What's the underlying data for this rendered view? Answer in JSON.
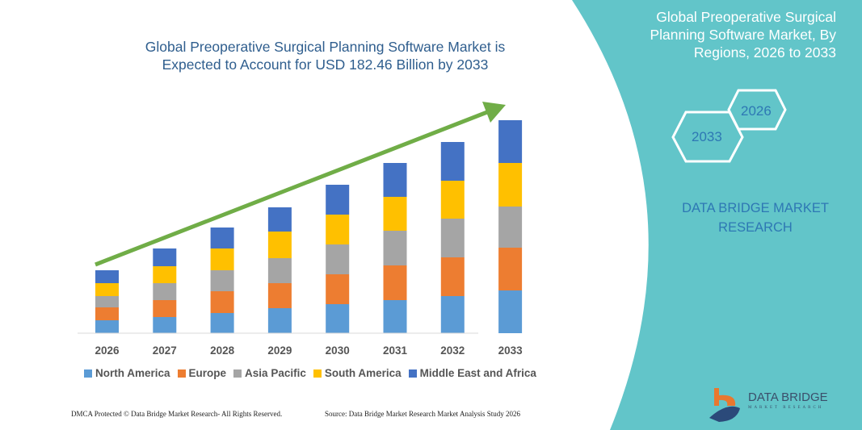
{
  "chart_data": {
    "type": "bar",
    "stacked": true,
    "title": "Global Preoperative Surgical Planning Software Market is Expected to Account for USD 182.46 Billion by 2033",
    "categories": [
      "2026",
      "2027",
      "2028",
      "2029",
      "2030",
      "2031",
      "2032",
      "2033"
    ],
    "series": [
      {
        "name": "North America",
        "color": "#5b9bd5",
        "values": [
          16,
          20,
          25,
          31,
          36,
          41,
          46,
          53
        ]
      },
      {
        "name": "Europe",
        "color": "#ed7d31",
        "values": [
          16,
          21,
          27,
          31,
          37,
          43,
          48,
          53
        ]
      },
      {
        "name": "Asia Pacific",
        "color": "#a5a5a5",
        "values": [
          14,
          21,
          26,
          31,
          37,
          43,
          48,
          51
        ]
      },
      {
        "name": "South America",
        "color": "#ffc000",
        "values": [
          16,
          21,
          27,
          33,
          37,
          42,
          47,
          54
        ]
      },
      {
        "name": "Middle East and Africa",
        "color": "#4472c4",
        "values": [
          16,
          22,
          26,
          30,
          37,
          42,
          48,
          53
        ]
      }
    ],
    "legend_position": "bottom",
    "grid": false,
    "trend_arrow_color": "#70ad47"
  },
  "title_lines": [
    "Global Preoperative Surgical Planning Software Market is",
    "Expected to Account for USD 182.46 Billion by 2033"
  ],
  "side_panel": {
    "title_lines": [
      "Global Preoperative Surgical",
      "Planning Software Market, By",
      "Regions, 2026 to 2033"
    ],
    "hex_start": "2026",
    "hex_end": "2033",
    "brand_lines": [
      "DATA BRIDGE MARKET",
      "RESEARCH"
    ],
    "color": "#62c5c9"
  },
  "logo": {
    "name": "DATA BRIDGE",
    "sub": "MARKET RESEARCH"
  },
  "footer": {
    "left": "DMCA Protected © Data Bridge Market Research- All Rights Reserved.",
    "right": "Source: Data Bridge Market Research Market Analysis Study 2026"
  }
}
